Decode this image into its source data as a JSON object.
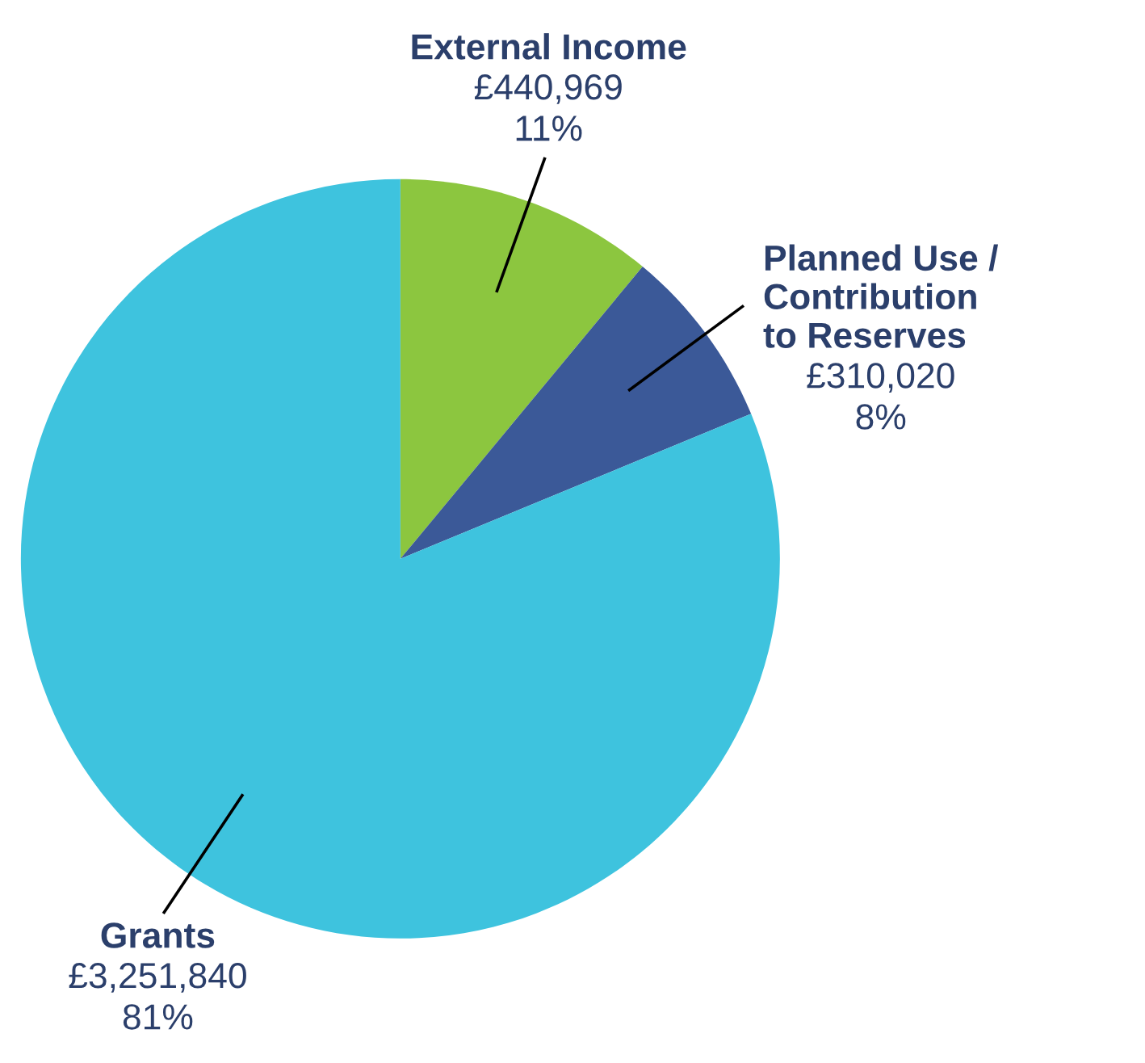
{
  "chart_data": {
    "type": "pie",
    "categories": [
      "External Income",
      "Planned Use /\nContribution\nto Reserves",
      "Grants"
    ],
    "values": [
      440969,
      310020,
      3251840
    ],
    "colors": [
      "#8cc63f",
      "#3b5998",
      "#3ec3de"
    ],
    "value_labels": [
      "£440,969\n11%",
      "£310,020\n8%",
      "£3,251,840\n81%"
    ]
  }
}
